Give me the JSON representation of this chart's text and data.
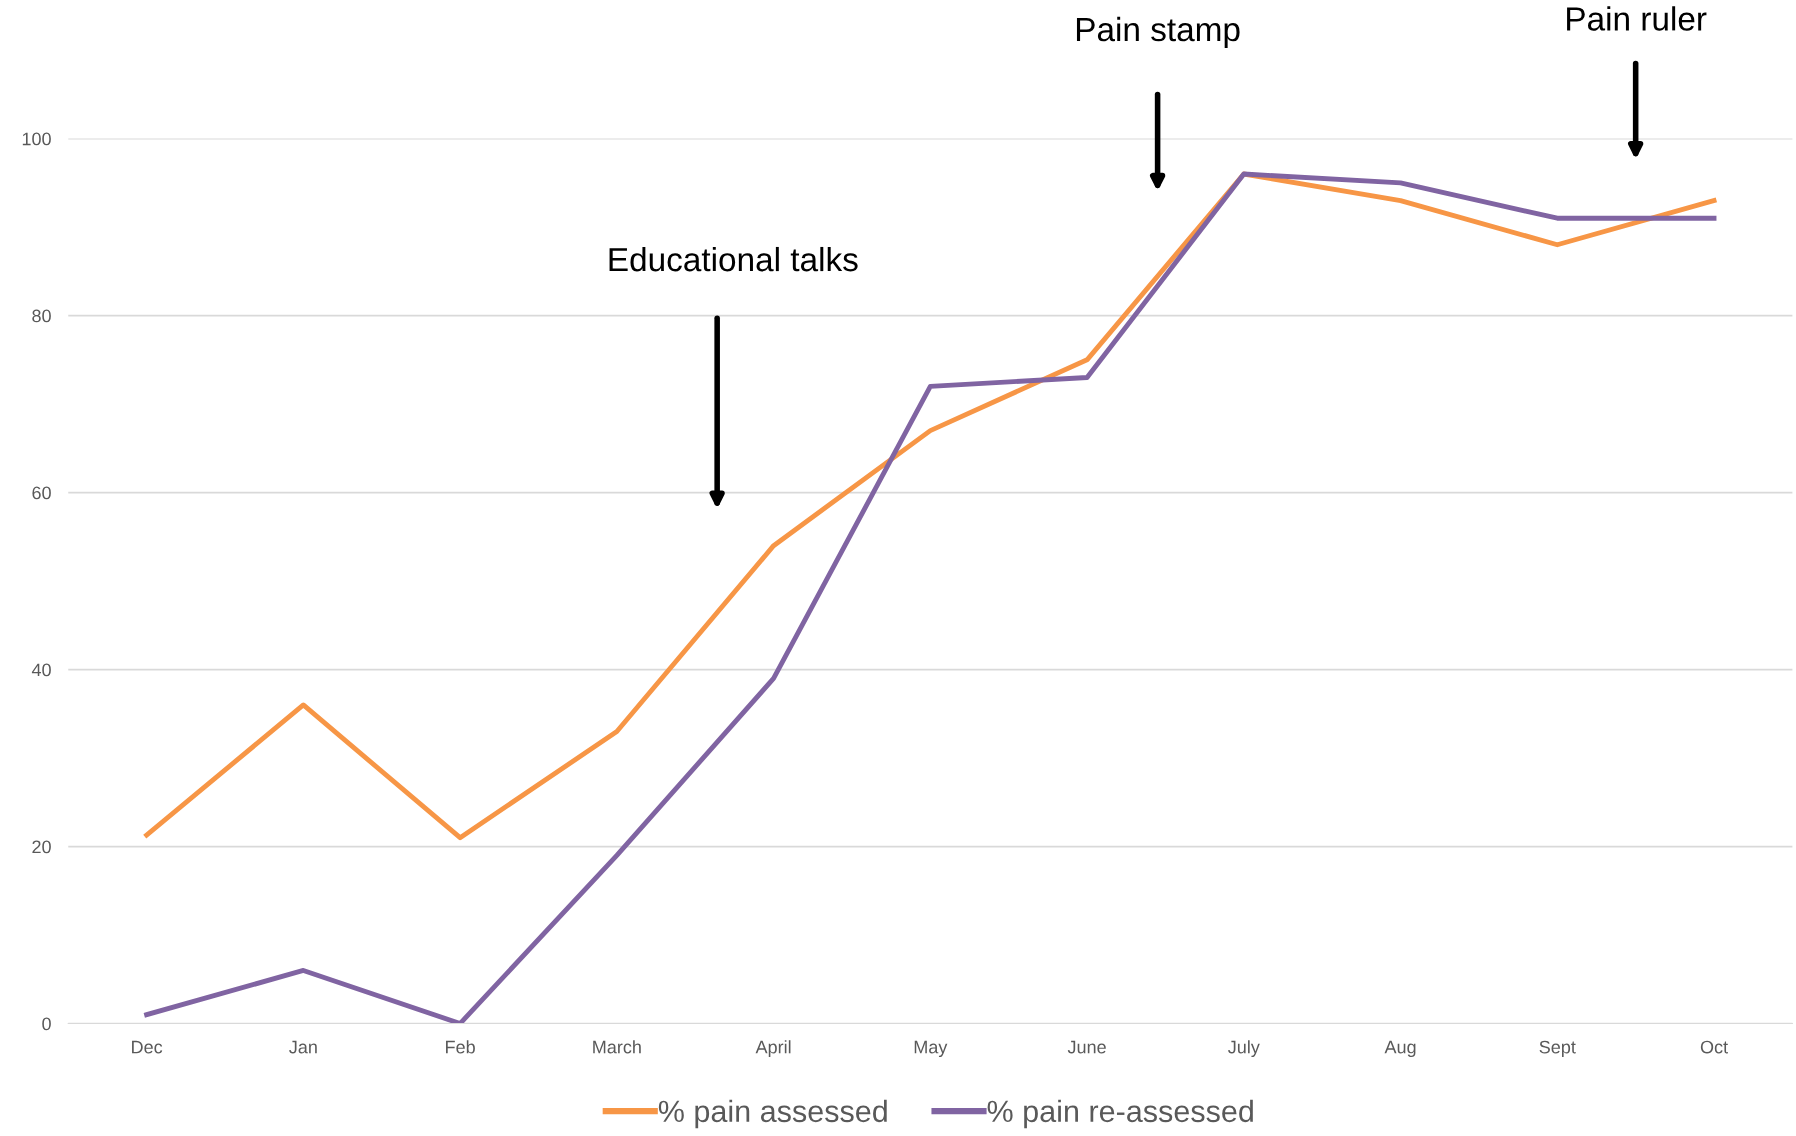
{
  "chart_data": {
    "type": "line",
    "categories": [
      "Dec",
      "Jan",
      "Feb",
      "March",
      "April",
      "May",
      "June",
      "July",
      "Aug",
      "Sept",
      "Oct"
    ],
    "series": [
      {
        "name": "% pain assessed",
        "color": "#f79646",
        "values": [
          21.3,
          36,
          21,
          33,
          54,
          67,
          75,
          96,
          93,
          88,
          93
        ]
      },
      {
        "name": "% pain re-assessed",
        "color": "#8064a2",
        "values": [
          1,
          6,
          0,
          19,
          39,
          72,
          73,
          96,
          95,
          91,
          91
        ]
      }
    ],
    "ylim": [
      0,
      100
    ],
    "yticks": [
      0,
      20,
      40,
      60,
      80,
      100
    ],
    "grid": "y",
    "legend": "bottom",
    "marker": "none",
    "line_style": "solid",
    "annotations": [
      "Educational talks",
      "Pain stamp",
      "Pain ruler"
    ]
  }
}
